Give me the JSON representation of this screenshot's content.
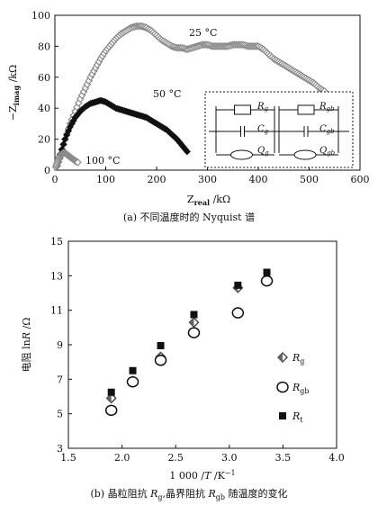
{
  "chart_data": [
    {
      "type": "scatter",
      "caption": "(a) 不同温度时的 Nyquist 谱",
      "xlabel": "Zreal /kΩ",
      "ylabel": "−Zimag /kΩ",
      "xlim": [
        0,
        600
      ],
      "ylim": [
        0,
        100
      ],
      "xticks": [
        0,
        100,
        200,
        300,
        400,
        500,
        600
      ],
      "yticks": [
        0,
        20,
        40,
        60,
        80,
        100
      ],
      "grid": false,
      "annotations": [
        "25 °C",
        "50 °C",
        "100 °C"
      ],
      "series": [
        {
          "label": "25 °C",
          "color": "#8a8a8a",
          "x": [
            5,
            12,
            20,
            30,
            40,
            50,
            60,
            70,
            80,
            90,
            100,
            110,
            120,
            130,
            140,
            150,
            160,
            170,
            180,
            190,
            200,
            210,
            220,
            230,
            240,
            250,
            260,
            270,
            280,
            290,
            300,
            310,
            320,
            330,
            340,
            350,
            360,
            370,
            380,
            390,
            400,
            410,
            420,
            430,
            440,
            450,
            460,
            470,
            480,
            490,
            500,
            510,
            520,
            530
          ],
          "y": [
            3,
            10,
            20,
            30,
            38,
            46,
            53,
            60,
            66,
            72,
            77,
            81,
            85,
            88,
            90,
            92,
            93,
            93,
            92,
            90,
            87,
            84,
            82,
            80,
            79,
            79,
            78,
            79,
            80,
            81,
            81,
            80,
            80,
            80,
            80,
            81,
            81,
            81,
            80,
            80,
            80,
            78,
            75,
            72,
            70,
            68,
            66,
            64,
            62,
            60,
            58,
            56,
            53,
            51
          ]
        },
        {
          "label": "50 °C",
          "color": "#111111",
          "x": [
            3,
            10,
            20,
            30,
            40,
            50,
            60,
            70,
            80,
            90,
            100,
            110,
            120,
            130,
            140,
            150,
            160,
            170,
            180,
            190,
            200,
            210,
            220,
            230,
            240,
            250,
            260
          ],
          "y": [
            2,
            10,
            20,
            28,
            34,
            38,
            41,
            43,
            44,
            45,
            44,
            42,
            40,
            39,
            38,
            37,
            36,
            35,
            34,
            32,
            30,
            28,
            26,
            23,
            20,
            16,
            12
          ]
        },
        {
          "label": "100 °C",
          "color": "#8a8a8a",
          "x": [
            2,
            5,
            8,
            12,
            16,
            20,
            24,
            28,
            32,
            36,
            40,
            45
          ],
          "y": [
            2,
            5,
            8,
            10,
            11,
            11,
            10,
            9,
            8,
            7,
            6,
            5
          ]
        }
      ],
      "inset": {
        "labels": [
          "Rg",
          "Cg",
          "Qg",
          "Rgb",
          "Cgb",
          "Qgb"
        ]
      }
    },
    {
      "type": "scatter",
      "caption": "(b) 晶粒阻抗 Rg,晶界阻抗 Rgb 随温度的变化",
      "xlabel": "1 000 /T /K⁻¹",
      "ylabel": "电阻 lnR /Ω",
      "xlim": [
        1.5,
        4.0
      ],
      "ylim": [
        3,
        15
      ],
      "xticks": [
        1.5,
        2.0,
        2.5,
        3.0,
        3.5,
        4.0
      ],
      "xtick_labels": [
        "1.5",
        "2.0",
        "2.5",
        "3.0",
        "3.5",
        "4.0"
      ],
      "yticks": [
        3,
        5,
        7,
        9,
        11,
        13,
        15
      ],
      "grid": false,
      "legend": "right",
      "series": [
        {
          "name": "Rg",
          "marker": "diamond",
          "color": "#777777",
          "x": [
            1.9,
            2.1,
            2.36,
            2.67,
            3.08,
            3.35
          ],
          "y": [
            5.9,
            6.9,
            8.3,
            10.3,
            12.3,
            12.8
          ]
        },
        {
          "name": "Rgb",
          "marker": "open-circle",
          "color": "#111111",
          "x": [
            1.9,
            2.1,
            2.36,
            2.67,
            3.08,
            3.35
          ],
          "y": [
            5.2,
            6.85,
            8.1,
            9.7,
            10.85,
            12.7
          ]
        },
        {
          "name": "Rt",
          "marker": "filled-square",
          "color": "#111111",
          "x": [
            1.9,
            2.1,
            2.36,
            2.67,
            3.08,
            3.35
          ],
          "y": [
            6.25,
            7.5,
            8.95,
            10.75,
            12.45,
            13.2
          ]
        }
      ]
    }
  ]
}
